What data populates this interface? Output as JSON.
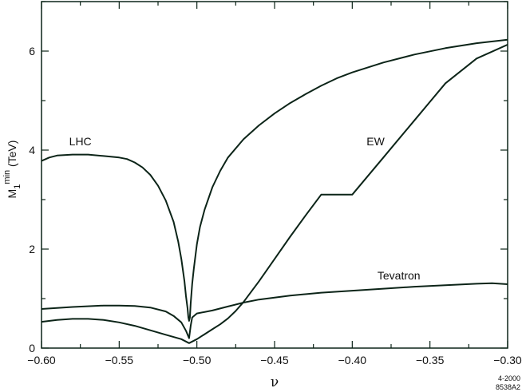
{
  "chart_data": {
    "type": "line",
    "xlabel": "ν",
    "ylabel": {
      "base": "M",
      "subscript": "1",
      "superscript": "min",
      "unit": "(TeV)"
    },
    "xlim": [
      -0.6,
      -0.3
    ],
    "ylim": [
      0,
      7
    ],
    "x_ticks": [
      -0.6,
      -0.55,
      -0.5,
      -0.45,
      -0.4,
      -0.35,
      -0.3
    ],
    "x_tick_labels": [
      "−0.60",
      "−0.55",
      "−0.50",
      "−0.45",
      "−0.40",
      "−0.35",
      "−0.30"
    ],
    "y_ticks": [
      0,
      2,
      4,
      6
    ],
    "y_tick_labels": [
      "0",
      "2",
      "4",
      "6"
    ],
    "grid": false,
    "series": [
      {
        "name": "LHC",
        "label_at": [
          -0.575,
          4.18
        ],
        "points": [
          [
            -0.6,
            3.78
          ],
          [
            -0.595,
            3.85
          ],
          [
            -0.59,
            3.89
          ],
          [
            -0.58,
            3.91
          ],
          [
            -0.57,
            3.91
          ],
          [
            -0.56,
            3.88
          ],
          [
            -0.55,
            3.85
          ],
          [
            -0.545,
            3.82
          ],
          [
            -0.54,
            3.75
          ],
          [
            -0.535,
            3.65
          ],
          [
            -0.53,
            3.5
          ],
          [
            -0.525,
            3.28
          ],
          [
            -0.52,
            2.98
          ],
          [
            -0.515,
            2.55
          ],
          [
            -0.512,
            2.15
          ],
          [
            -0.51,
            1.8
          ],
          [
            -0.508,
            1.35
          ],
          [
            -0.507,
            1.05
          ],
          [
            -0.506,
            0.8
          ],
          [
            -0.5055,
            0.62
          ],
          [
            -0.505,
            0.55
          ],
          [
            -0.5045,
            0.62
          ],
          [
            -0.504,
            0.9
          ],
          [
            -0.503,
            1.3
          ],
          [
            -0.502,
            1.6
          ],
          [
            -0.5,
            2.1
          ],
          [
            -0.498,
            2.45
          ],
          [
            -0.495,
            2.8
          ],
          [
            -0.49,
            3.25
          ],
          [
            -0.485,
            3.58
          ],
          [
            -0.48,
            3.85
          ],
          [
            -0.47,
            4.22
          ],
          [
            -0.46,
            4.5
          ],
          [
            -0.45,
            4.74
          ],
          [
            -0.44,
            4.95
          ],
          [
            -0.43,
            5.13
          ],
          [
            -0.42,
            5.3
          ],
          [
            -0.41,
            5.45
          ],
          [
            -0.4,
            5.57
          ],
          [
            -0.38,
            5.77
          ],
          [
            -0.36,
            5.93
          ],
          [
            -0.34,
            6.06
          ],
          [
            -0.32,
            6.16
          ],
          [
            -0.3,
            6.23
          ]
        ]
      },
      {
        "name": "EW",
        "label_at": [
          -0.385,
          4.18
        ],
        "points": [
          [
            -0.6,
            0.53
          ],
          [
            -0.59,
            0.57
          ],
          [
            -0.58,
            0.59
          ],
          [
            -0.57,
            0.59
          ],
          [
            -0.56,
            0.57
          ],
          [
            -0.55,
            0.52
          ],
          [
            -0.54,
            0.45
          ],
          [
            -0.53,
            0.36
          ],
          [
            -0.52,
            0.27
          ],
          [
            -0.51,
            0.18
          ],
          [
            -0.505,
            0.1
          ],
          [
            -0.5,
            0.18
          ],
          [
            -0.495,
            0.28
          ],
          [
            -0.49,
            0.38
          ],
          [
            -0.485,
            0.48
          ],
          [
            -0.48,
            0.6
          ],
          [
            -0.475,
            0.75
          ],
          [
            -0.47,
            0.93
          ],
          [
            -0.46,
            1.35
          ],
          [
            -0.45,
            1.8
          ],
          [
            -0.44,
            2.25
          ],
          [
            -0.43,
            2.68
          ],
          [
            -0.42,
            3.1
          ],
          [
            -0.4,
            3.1
          ],
          [
            -0.38,
            3.85
          ],
          [
            -0.36,
            4.6
          ],
          [
            -0.34,
            5.35
          ],
          [
            -0.32,
            5.85
          ],
          [
            -0.3,
            6.13
          ]
        ]
      },
      {
        "name": "Tevatron",
        "label_at": [
          -0.37,
          1.47
        ],
        "points": [
          [
            -0.6,
            0.79
          ],
          [
            -0.58,
            0.83
          ],
          [
            -0.56,
            0.86
          ],
          [
            -0.55,
            0.86
          ],
          [
            -0.54,
            0.85
          ],
          [
            -0.53,
            0.82
          ],
          [
            -0.52,
            0.74
          ],
          [
            -0.515,
            0.65
          ],
          [
            -0.51,
            0.52
          ],
          [
            -0.507,
            0.35
          ],
          [
            -0.505,
            0.2
          ],
          [
            -0.504,
            0.45
          ],
          [
            -0.503,
            0.62
          ],
          [
            -0.5,
            0.7
          ],
          [
            -0.49,
            0.76
          ],
          [
            -0.48,
            0.84
          ],
          [
            -0.47,
            0.92
          ],
          [
            -0.46,
            0.98
          ],
          [
            -0.45,
            1.02
          ],
          [
            -0.44,
            1.06
          ],
          [
            -0.42,
            1.12
          ],
          [
            -0.4,
            1.16
          ],
          [
            -0.38,
            1.2
          ],
          [
            -0.36,
            1.24
          ],
          [
            -0.34,
            1.27
          ],
          [
            -0.32,
            1.3
          ],
          [
            -0.31,
            1.31
          ],
          [
            -0.3,
            1.29
          ]
        ]
      }
    ],
    "footnote": [
      "4-2000",
      "8538A2"
    ]
  }
}
